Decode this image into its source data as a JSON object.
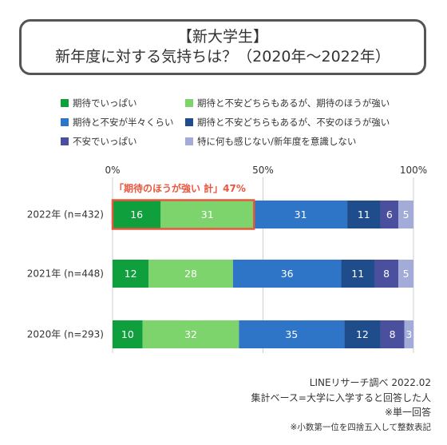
{
  "title": {
    "line1": "【新大学生】",
    "line2": "新年度に対する気持ちは？（2020年～2022年）"
  },
  "legend": [
    {
      "label": "期待でいっぱい",
      "color": "#0f9f3c"
    },
    {
      "label": "期待と不安どちらもあるが、期待のほうが強い",
      "color": "#7ed46c"
    },
    {
      "label": "期待と不安が半々くらい",
      "color": "#2e75c8"
    },
    {
      "label": "期待と不安どちらもあるが、不安のほうが強い",
      "color": "#1f4d8c"
    },
    {
      "label": "不安でいっぱい",
      "color": "#4a4f9e"
    },
    {
      "label": "特に何も感じない/新年度を意識しない",
      "color": "#a3acd9"
    }
  ],
  "annotation": {
    "label": "「期待のほうが強い 計」47%",
    "color": "#e8573e"
  },
  "chart_data": {
    "type": "bar",
    "orientation": "horizontal",
    "stacked": true,
    "xlim": [
      0,
      100
    ],
    "xticks": [
      "0%",
      "50%",
      "100%"
    ],
    "categories": [
      "2022年 (n=432)",
      "2021年 (n=448)",
      "2020年 (n=293)"
    ],
    "series": [
      {
        "name": "期待でいっぱい",
        "values": [
          16,
          12,
          10
        ]
      },
      {
        "name": "期待と不安どちらもあるが、期待のほうが強い",
        "values": [
          31,
          28,
          32
        ]
      },
      {
        "name": "期待と不安が半々くらい",
        "values": [
          31,
          36,
          35
        ]
      },
      {
        "name": "期待と不安どちらもあるが、不安のほうが強い",
        "values": [
          11,
          11,
          12
        ]
      },
      {
        "name": "不安でいっぱい",
        "values": [
          6,
          8,
          8
        ]
      },
      {
        "name": "特に何も感じない/新年度を意識しない",
        "values": [
          5,
          5,
          3
        ]
      }
    ],
    "grid": true
  },
  "footnotes": [
    "LINEリサーチ調べ 2022.02",
    "集計ベース=大学に入学すると回答した人",
    "※単一回答",
    "※小数第一位を四捨五入して整数表記"
  ]
}
